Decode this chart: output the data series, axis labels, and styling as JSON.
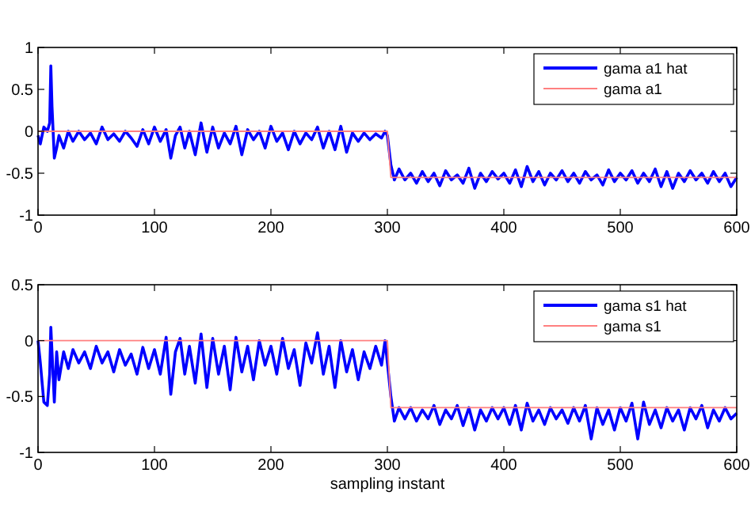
{
  "chart_data": [
    {
      "type": "line",
      "xlim": [
        0,
        600
      ],
      "ylim": [
        -1,
        1
      ],
      "xticks": [
        0,
        100,
        200,
        300,
        400,
        500,
        600
      ],
      "yticks": [
        -1,
        -0.5,
        0,
        0.5,
        1
      ],
      "legend": "top right",
      "series": [
        {
          "name": "gama a1 hat",
          "color": "#0000ff",
          "x": [
            0,
            2,
            5,
            8,
            10,
            11,
            12,
            14,
            16,
            18,
            22,
            26,
            30,
            35,
            40,
            45,
            50,
            55,
            60,
            65,
            70,
            75,
            80,
            85,
            90,
            95,
            100,
            105,
            110,
            114,
            118,
            122,
            126,
            130,
            135,
            140,
            145,
            150,
            155,
            160,
            165,
            170,
            175,
            180,
            185,
            190,
            195,
            200,
            205,
            210,
            215,
            220,
            225,
            230,
            235,
            240,
            245,
            250,
            255,
            260,
            265,
            270,
            275,
            280,
            285,
            290,
            295,
            298,
            300,
            303,
            306,
            310,
            315,
            320,
            325,
            330,
            335,
            340,
            345,
            350,
            355,
            360,
            365,
            370,
            375,
            380,
            385,
            390,
            395,
            400,
            405,
            410,
            415,
            420,
            425,
            430,
            435,
            440,
            445,
            450,
            455,
            460,
            465,
            470,
            475,
            480,
            485,
            490,
            495,
            500,
            505,
            510,
            515,
            520,
            525,
            530,
            535,
            540,
            545,
            550,
            555,
            560,
            565,
            570,
            575,
            580,
            585,
            590,
            595,
            600
          ],
          "values": [
            -0.05,
            -0.15,
            0.05,
            0.0,
            0.1,
            0.78,
            0.3,
            -0.32,
            -0.2,
            -0.05,
            -0.2,
            0.0,
            -0.12,
            0.0,
            -0.1,
            -0.02,
            -0.15,
            0.05,
            -0.1,
            -0.03,
            -0.12,
            0.0,
            -0.08,
            -0.18,
            0.02,
            -0.15,
            0.05,
            -0.12,
            0.02,
            -0.32,
            -0.05,
            0.05,
            -0.2,
            0.0,
            -0.28,
            0.1,
            -0.25,
            0.05,
            -0.2,
            -0.02,
            -0.15,
            0.06,
            -0.28,
            0.02,
            -0.1,
            0.0,
            -0.2,
            0.06,
            -0.12,
            -0.02,
            -0.22,
            0.0,
            -0.15,
            -0.02,
            -0.1,
            0.05,
            -0.2,
            0.0,
            -0.22,
            0.06,
            -0.25,
            -0.02,
            -0.12,
            -0.02,
            -0.1,
            -0.03,
            -0.08,
            0.0,
            -0.05,
            -0.4,
            -0.58,
            -0.45,
            -0.58,
            -0.5,
            -0.62,
            -0.48,
            -0.6,
            -0.5,
            -0.65,
            -0.47,
            -0.58,
            -0.52,
            -0.62,
            -0.44,
            -0.68,
            -0.5,
            -0.6,
            -0.48,
            -0.57,
            -0.5,
            -0.62,
            -0.46,
            -0.66,
            -0.42,
            -0.6,
            -0.48,
            -0.64,
            -0.5,
            -0.58,
            -0.47,
            -0.6,
            -0.5,
            -0.62,
            -0.48,
            -0.58,
            -0.52,
            -0.64,
            -0.46,
            -0.6,
            -0.5,
            -0.58,
            -0.47,
            -0.62,
            -0.5,
            -0.6,
            -0.45,
            -0.66,
            -0.48,
            -0.68,
            -0.5,
            -0.6,
            -0.47,
            -0.58,
            -0.5,
            -0.62,
            -0.48,
            -0.6,
            -0.5,
            -0.66,
            -0.55
          ]
        },
        {
          "name": "gama a1",
          "color": "#ff8080",
          "x": [
            0,
            300,
            303,
            600
          ],
          "values": [
            0,
            0,
            -0.55,
            -0.55
          ]
        }
      ]
    },
    {
      "type": "line",
      "xlim": [
        0,
        600
      ],
      "ylim": [
        -1,
        0.5
      ],
      "xticks": [
        0,
        100,
        200,
        300,
        400,
        500,
        600
      ],
      "yticks": [
        -1,
        -0.5,
        0,
        0.5
      ],
      "xlabel": "sampling instant",
      "legend": "top right",
      "series": [
        {
          "name": "gama s1 hat",
          "color": "#0000ff",
          "x": [
            0,
            2,
            5,
            8,
            10,
            11,
            12,
            14,
            16,
            18,
            22,
            26,
            30,
            35,
            40,
            45,
            50,
            55,
            60,
            65,
            70,
            75,
            80,
            85,
            90,
            95,
            100,
            105,
            110,
            114,
            118,
            122,
            126,
            130,
            135,
            140,
            145,
            150,
            155,
            160,
            165,
            170,
            175,
            180,
            185,
            190,
            195,
            200,
            205,
            210,
            215,
            220,
            225,
            230,
            235,
            240,
            245,
            250,
            255,
            260,
            265,
            270,
            275,
            280,
            285,
            290,
            295,
            298,
            300,
            303,
            306,
            310,
            315,
            320,
            325,
            330,
            335,
            340,
            345,
            350,
            355,
            360,
            365,
            370,
            375,
            380,
            385,
            390,
            395,
            400,
            405,
            410,
            415,
            420,
            425,
            430,
            435,
            440,
            445,
            450,
            455,
            460,
            465,
            470,
            475,
            480,
            485,
            490,
            495,
            500,
            505,
            510,
            515,
            520,
            525,
            530,
            535,
            540,
            545,
            550,
            555,
            560,
            565,
            570,
            575,
            580,
            585,
            590,
            595,
            600
          ],
          "values": [
            0.0,
            -0.2,
            -0.55,
            -0.58,
            -0.3,
            0.12,
            -0.1,
            -0.55,
            -0.1,
            -0.35,
            -0.1,
            -0.25,
            -0.08,
            -0.2,
            -0.1,
            -0.25,
            -0.05,
            -0.2,
            -0.1,
            -0.28,
            -0.08,
            -0.22,
            -0.12,
            -0.3,
            -0.06,
            -0.25,
            -0.08,
            -0.3,
            0.03,
            -0.48,
            -0.1,
            0.02,
            -0.3,
            -0.05,
            -0.38,
            0.06,
            -0.42,
            0.02,
            -0.3,
            -0.05,
            -0.44,
            0.03,
            -0.28,
            -0.05,
            -0.35,
            0.0,
            -0.22,
            -0.05,
            -0.3,
            0.02,
            -0.25,
            -0.08,
            -0.4,
            -0.02,
            -0.2,
            0.07,
            -0.3,
            -0.05,
            -0.42,
            0.0,
            -0.28,
            -0.08,
            -0.35,
            -0.1,
            -0.25,
            -0.05,
            -0.22,
            0.0,
            -0.2,
            -0.5,
            -0.72,
            -0.6,
            -0.7,
            -0.6,
            -0.72,
            -0.62,
            -0.7,
            -0.58,
            -0.75,
            -0.62,
            -0.7,
            -0.58,
            -0.76,
            -0.6,
            -0.8,
            -0.62,
            -0.72,
            -0.6,
            -0.7,
            -0.6,
            -0.75,
            -0.58,
            -0.8,
            -0.56,
            -0.72,
            -0.62,
            -0.75,
            -0.6,
            -0.7,
            -0.62,
            -0.74,
            -0.6,
            -0.72,
            -0.58,
            -0.88,
            -0.6,
            -0.75,
            -0.62,
            -0.8,
            -0.6,
            -0.72,
            -0.56,
            -0.88,
            -0.55,
            -0.75,
            -0.62,
            -0.78,
            -0.6,
            -0.72,
            -0.62,
            -0.8,
            -0.6,
            -0.7,
            -0.58,
            -0.78,
            -0.62,
            -0.72,
            -0.6,
            -0.7,
            -0.65
          ]
        },
        {
          "name": "gama s1",
          "color": "#ff8080",
          "x": [
            0,
            300,
            303,
            600
          ],
          "values": [
            0,
            0,
            -0.6,
            -0.6
          ]
        }
      ]
    }
  ]
}
